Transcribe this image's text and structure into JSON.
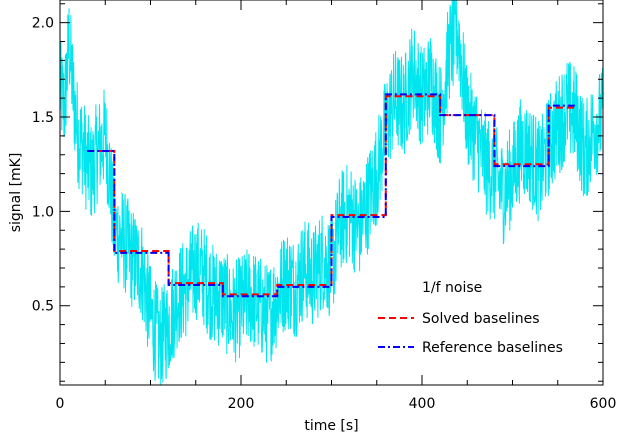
{
  "chart_data": {
    "type": "line",
    "title": "",
    "xlabel": "time [s]",
    "ylabel": "signal [mK]",
    "xlim": [
      0,
      600
    ],
    "ylim": [
      0.08,
      2.12
    ],
    "x_ticks": [
      0,
      200,
      400,
      600
    ],
    "x_tick_labels": [
      "0",
      "200",
      "400",
      "600"
    ],
    "y_ticks": [
      0.5,
      1.0,
      1.5,
      2.0
    ],
    "y_tick_labels": [
      "0.5",
      "1.0",
      "1.5",
      "2.0"
    ],
    "grid": false,
    "legend_position": "lower-right",
    "series": [
      {
        "name": "1/f noise",
        "style": "solid",
        "color": "#00e5ee",
        "x": [
          0,
          5,
          10,
          15,
          20,
          25,
          30,
          35,
          40,
          45,
          50,
          55,
          60,
          70,
          80,
          90,
          100,
          110,
          120,
          130,
          140,
          150,
          160,
          170,
          180,
          190,
          200,
          210,
          220,
          230,
          240,
          250,
          260,
          270,
          280,
          290,
          300,
          310,
          320,
          330,
          340,
          350,
          360,
          370,
          380,
          390,
          400,
          410,
          420,
          430,
          440,
          450,
          460,
          470,
          480,
          490,
          500,
          510,
          520,
          530,
          540,
          550,
          560,
          570,
          580,
          590,
          600
        ],
        "values": [
          1.65,
          1.55,
          1.9,
          1.6,
          1.4,
          1.35,
          1.25,
          1.2,
          1.3,
          1.35,
          1.4,
          1.2,
          0.9,
          0.85,
          0.75,
          0.7,
          0.45,
          0.3,
          0.4,
          0.55,
          0.6,
          0.7,
          0.65,
          0.55,
          0.55,
          0.45,
          0.5,
          0.55,
          0.5,
          0.45,
          0.55,
          0.65,
          0.6,
          0.7,
          0.65,
          0.75,
          0.7,
          0.95,
          1.0,
          0.9,
          1.05,
          1.2,
          1.45,
          1.6,
          1.55,
          1.75,
          1.6,
          1.7,
          1.5,
          1.85,
          1.95,
          1.5,
          1.4,
          1.25,
          1.2,
          1.1,
          1.2,
          1.35,
          1.3,
          1.2,
          1.35,
          1.45,
          1.55,
          1.5,
          1.3,
          1.45,
          1.5
        ]
      },
      {
        "name": "Solved baselines",
        "style": "dashed",
        "color": "#ff0000",
        "steps": [
          {
            "x0": 30,
            "x1": 60,
            "y": 1.32
          },
          {
            "x0": 60,
            "x1": 120,
            "y": 0.79
          },
          {
            "x0": 120,
            "x1": 180,
            "y": 0.62
          },
          {
            "x0": 180,
            "x1": 240,
            "y": 0.56
          },
          {
            "x0": 240,
            "x1": 300,
            "y": 0.61
          },
          {
            "x0": 300,
            "x1": 360,
            "y": 0.98
          },
          {
            "x0": 360,
            "x1": 420,
            "y": 1.61
          },
          {
            "x0": 420,
            "x1": 480,
            "y": 1.51
          },
          {
            "x0": 480,
            "x1": 540,
            "y": 1.25
          },
          {
            "x0": 540,
            "x1": 570,
            "y": 1.55
          }
        ]
      },
      {
        "name": "Reference baselines",
        "style": "dash-dot",
        "color": "#0000ff",
        "steps": [
          {
            "x0": 30,
            "x1": 60,
            "y": 1.32
          },
          {
            "x0": 60,
            "x1": 120,
            "y": 0.78
          },
          {
            "x0": 120,
            "x1": 180,
            "y": 0.61
          },
          {
            "x0": 180,
            "x1": 240,
            "y": 0.55
          },
          {
            "x0": 240,
            "x1": 300,
            "y": 0.6
          },
          {
            "x0": 300,
            "x1": 360,
            "y": 0.97
          },
          {
            "x0": 360,
            "x1": 420,
            "y": 1.62
          },
          {
            "x0": 420,
            "x1": 480,
            "y": 1.51
          },
          {
            "x0": 480,
            "x1": 540,
            "y": 1.24
          },
          {
            "x0": 540,
            "x1": 570,
            "y": 1.56
          }
        ]
      }
    ]
  }
}
